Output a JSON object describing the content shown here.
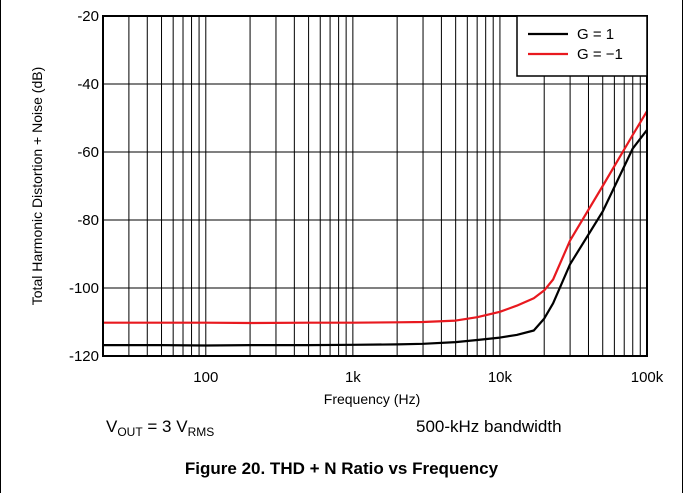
{
  "chart_data": {
    "type": "line",
    "xscale": "log",
    "xlim": [
      20,
      100000
    ],
    "ylim": [
      -120,
      -20
    ],
    "grid": true,
    "legend_position": "top-right",
    "xlabel": "Frequency (Hz)",
    "ylabel": "Total Harmonic Distortion + Noise (dB)",
    "xtick_values": [
      100,
      1000,
      10000,
      100000
    ],
    "xtick_labels": [
      "100",
      "1k",
      "10k",
      "100k"
    ],
    "yticks": [
      -20,
      -40,
      -60,
      -80,
      -100,
      -120
    ],
    "series": [
      {
        "name": "G = 1",
        "color": "#000000",
        "points": [
          [
            20,
            -116.8
          ],
          [
            50,
            -116.8
          ],
          [
            100,
            -116.9
          ],
          [
            200,
            -116.8
          ],
          [
            500,
            -116.8
          ],
          [
            1000,
            -116.7
          ],
          [
            2000,
            -116.6
          ],
          [
            3000,
            -116.4
          ],
          [
            5000,
            -115.9
          ],
          [
            7000,
            -115.3
          ],
          [
            10000,
            -114.6
          ],
          [
            13000,
            -113.8
          ],
          [
            17000,
            -112.5
          ],
          [
            20000,
            -109
          ],
          [
            23000,
            -104.5
          ],
          [
            30000,
            -93
          ],
          [
            50000,
            -77.5
          ],
          [
            80000,
            -59
          ],
          [
            100000,
            -53.5
          ]
        ]
      },
      {
        "name": "G = −1",
        "color": "#e8191f",
        "points": [
          [
            20,
            -110.2
          ],
          [
            50,
            -110.2
          ],
          [
            100,
            -110.2
          ],
          [
            200,
            -110.3
          ],
          [
            500,
            -110.2
          ],
          [
            1000,
            -110.2
          ],
          [
            2000,
            -110.1
          ],
          [
            3000,
            -110
          ],
          [
            5000,
            -109.6
          ],
          [
            7000,
            -108.6
          ],
          [
            10000,
            -107
          ],
          [
            13000,
            -105.2
          ],
          [
            17000,
            -103
          ],
          [
            20000,
            -100.7
          ],
          [
            23000,
            -97.5
          ],
          [
            30000,
            -86
          ],
          [
            50000,
            -70
          ],
          [
            80000,
            -55
          ],
          [
            100000,
            -48
          ]
        ]
      }
    ]
  },
  "notes": {
    "vout_prefix": "V",
    "vout_sub": "OUT",
    "vout_mid": " = 3 V",
    "vout_unit_sub": "RMS",
    "bandwidth": "500-kHz bandwidth"
  },
  "caption": "Figure 20. THD + N Ratio vs Frequency"
}
